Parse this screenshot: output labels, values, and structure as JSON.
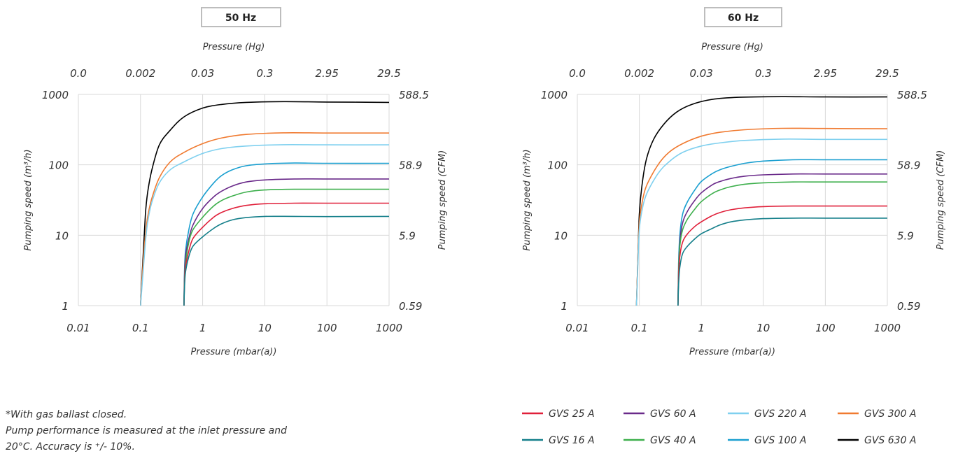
{
  "chart_data": [
    {
      "type": "line",
      "title": "50 Hz",
      "xlabel": "Pressure (mbar(a))",
      "x2label": "Pressure (Hg)",
      "ylabel": "Pumping speed (m³/h)",
      "y2label": "Pumping speed (CFM)",
      "xscale": "log",
      "yscale": "log",
      "xlim": [
        0.01,
        1000
      ],
      "ylim": [
        1,
        1000
      ],
      "x_ticks": [
        "0.01",
        "0.1",
        "1",
        "10",
        "100",
        "1000"
      ],
      "x2_ticks": [
        "0.0",
        "0.002",
        "0.03",
        "0.3",
        "2.95",
        "29.5"
      ],
      "y_ticks": [
        "1",
        "10",
        "100",
        "1000"
      ],
      "y2_ticks": [
        "0.59",
        "5.9",
        "58.9",
        "588.5"
      ],
      "grid": "vertical and horizontal",
      "series": [
        {
          "name": "GVS 630 A",
          "color": "#000000",
          "points": [
            [
              0.1,
              1
            ],
            [
              0.11,
              5
            ],
            [
              0.12,
              20
            ],
            [
              0.13,
              40
            ],
            [
              0.15,
              80
            ],
            [
              0.2,
              190
            ],
            [
              0.3,
              310
            ],
            [
              0.5,
              480
            ],
            [
              1,
              640
            ],
            [
              2,
              720
            ],
            [
              5,
              770
            ],
            [
              20,
              790
            ],
            [
              100,
              780
            ],
            [
              1000,
              770
            ]
          ]
        },
        {
          "name": "GVS 300 A",
          "color": "#f07a30",
          "points": [
            [
              0.1,
              1
            ],
            [
              0.11,
              4
            ],
            [
              0.12,
              10
            ],
            [
              0.13,
              18
            ],
            [
              0.15,
              32
            ],
            [
              0.2,
              65
            ],
            [
              0.3,
              110
            ],
            [
              0.5,
              150
            ],
            [
              1,
              200
            ],
            [
              2,
              240
            ],
            [
              5,
              270
            ],
            [
              20,
              285
            ],
            [
              100,
              283
            ],
            [
              1000,
              283
            ]
          ]
        },
        {
          "name": "GVS 220 A",
          "color": "#7fd0ef",
          "points": [
            [
              0.1,
              1
            ],
            [
              0.11,
              3
            ],
            [
              0.12,
              8
            ],
            [
              0.13,
              15
            ],
            [
              0.15,
              28
            ],
            [
              0.2,
              55
            ],
            [
              0.3,
              85
            ],
            [
              0.5,
              110
            ],
            [
              1,
              145
            ],
            [
              2,
              170
            ],
            [
              5,
              185
            ],
            [
              20,
              193
            ],
            [
              100,
              192
            ],
            [
              1000,
              192
            ]
          ]
        },
        {
          "name": "GVS 100 A",
          "color": "#1a9fd0",
          "points": [
            [
              0.5,
              1
            ],
            [
              0.51,
              3
            ],
            [
              0.53,
              6
            ],
            [
              0.6,
              12
            ],
            [
              0.7,
              20
            ],
            [
              1,
              35
            ],
            [
              1.5,
              55
            ],
            [
              2,
              70
            ],
            [
              3,
              85
            ],
            [
              5,
              97
            ],
            [
              10,
              103
            ],
            [
              30,
              106
            ],
            [
              100,
              105
            ],
            [
              1000,
              105
            ]
          ]
        },
        {
          "name": "GVS 60 A",
          "color": "#6a2a8a",
          "points": [
            [
              0.5,
              1
            ],
            [
              0.51,
              2.5
            ],
            [
              0.53,
              5
            ],
            [
              0.6,
              9
            ],
            [
              0.7,
              14
            ],
            [
              1,
              24
            ],
            [
              1.5,
              35
            ],
            [
              2,
              42
            ],
            [
              3,
              50
            ],
            [
              5,
              57
            ],
            [
              10,
              61
            ],
            [
              30,
              63
            ],
            [
              100,
              63
            ],
            [
              1000,
              63
            ]
          ]
        },
        {
          "name": "GVS 40 A",
          "color": "#3daf4c",
          "points": [
            [
              0.5,
              1
            ],
            [
              0.51,
              2.2
            ],
            [
              0.53,
              4
            ],
            [
              0.6,
              8
            ],
            [
              0.7,
              12
            ],
            [
              1,
              18
            ],
            [
              1.5,
              26
            ],
            [
              2,
              31
            ],
            [
              3,
              36
            ],
            [
              5,
              41
            ],
            [
              10,
              44
            ],
            [
              30,
              45
            ],
            [
              100,
              45
            ],
            [
              1000,
              45
            ]
          ]
        },
        {
          "name": "GVS 25 A",
          "color": "#e0203a",
          "points": [
            [
              0.5,
              1
            ],
            [
              0.51,
              2
            ],
            [
              0.53,
              3.5
            ],
            [
              0.6,
              6
            ],
            [
              0.7,
              9
            ],
            [
              1,
              13
            ],
            [
              1.5,
              18
            ],
            [
              2,
              21
            ],
            [
              3,
              24
            ],
            [
              5,
              26.5
            ],
            [
              10,
              28
            ],
            [
              30,
              28.5
            ],
            [
              100,
              28.5
            ],
            [
              1000,
              28.5
            ]
          ]
        },
        {
          "name": "GVS 16 A",
          "color": "#147f8a",
          "points": [
            [
              0.5,
              1
            ],
            [
              0.51,
              1.8
            ],
            [
              0.53,
              3
            ],
            [
              0.6,
              5
            ],
            [
              0.7,
              7
            ],
            [
              1,
              9.5
            ],
            [
              1.5,
              12.5
            ],
            [
              2,
              14.5
            ],
            [
              3,
              16.5
            ],
            [
              5,
              17.8
            ],
            [
              10,
              18.5
            ],
            [
              30,
              18.5
            ],
            [
              100,
              18.4
            ],
            [
              1000,
              18.5
            ]
          ]
        }
      ]
    },
    {
      "type": "line",
      "title": "60 Hz",
      "xlabel": "Pressure (mbar(a))",
      "x2label": "Pressure (Hg)",
      "ylabel": "Pumping speed (m³/h)",
      "y2label": "Pumping speed (CFM)",
      "xscale": "log",
      "yscale": "log",
      "xlim": [
        0.01,
        1000
      ],
      "ylim": [
        1,
        1000
      ],
      "x_ticks": [
        "0.01",
        "0.1",
        "1",
        "10",
        "100",
        "1000"
      ],
      "x2_ticks": [
        "0.0",
        "0.002",
        "0.03",
        "0.3",
        "2.95",
        "29.5"
      ],
      "y_ticks": [
        "1",
        "10",
        "100",
        "1000"
      ],
      "y2_ticks": [
        "0.59",
        "5.9",
        "58.9",
        "588.5"
      ],
      "grid": "vertical and horizontal",
      "series": [
        {
          "name": "GVS 630 A",
          "color": "#000000",
          "points": [
            [
              0.09,
              1
            ],
            [
              0.095,
              5
            ],
            [
              0.1,
              20
            ],
            [
              0.11,
              50
            ],
            [
              0.13,
              120
            ],
            [
              0.17,
              230
            ],
            [
              0.25,
              380
            ],
            [
              0.4,
              560
            ],
            [
              0.7,
              720
            ],
            [
              1.5,
              850
            ],
            [
              4,
              910
            ],
            [
              20,
              930
            ],
            [
              100,
              920
            ],
            [
              1000,
              920
            ]
          ]
        },
        {
          "name": "GVS 300 A",
          "color": "#f07a30",
          "points": [
            [
              0.09,
              1
            ],
            [
              0.095,
              5
            ],
            [
              0.1,
              15
            ],
            [
              0.11,
              28
            ],
            [
              0.13,
              50
            ],
            [
              0.2,
              100
            ],
            [
              0.3,
              150
            ],
            [
              0.5,
              200
            ],
            [
              1,
              255
            ],
            [
              2,
              290
            ],
            [
              5,
              315
            ],
            [
              20,
              330
            ],
            [
              100,
              328
            ],
            [
              1000,
              325
            ]
          ]
        },
        {
          "name": "GVS 220 A",
          "color": "#7fd0ef",
          "points": [
            [
              0.09,
              1
            ],
            [
              0.095,
              4
            ],
            [
              0.1,
              12
            ],
            [
              0.11,
              22
            ],
            [
              0.13,
              38
            ],
            [
              0.2,
              75
            ],
            [
              0.3,
              110
            ],
            [
              0.5,
              150
            ],
            [
              1,
              185
            ],
            [
              2,
              205
            ],
            [
              5,
              222
            ],
            [
              20,
              232
            ],
            [
              100,
              230
            ],
            [
              1000,
              230
            ]
          ]
        },
        {
          "name": "GVS 100 A",
          "color": "#1a9fd0",
          "points": [
            [
              0.42,
              1
            ],
            [
              0.43,
              4
            ],
            [
              0.45,
              10
            ],
            [
              0.5,
              20
            ],
            [
              0.6,
              30
            ],
            [
              0.8,
              45
            ],
            [
              1,
              58
            ],
            [
              1.5,
              75
            ],
            [
              2,
              85
            ],
            [
              3,
              95
            ],
            [
              5,
              105
            ],
            [
              10,
              113
            ],
            [
              30,
              118
            ],
            [
              100,
              118
            ],
            [
              1000,
              118
            ]
          ]
        },
        {
          "name": "GVS 60 A",
          "color": "#6a2a8a",
          "points": [
            [
              0.42,
              1
            ],
            [
              0.43,
              3
            ],
            [
              0.45,
              8
            ],
            [
              0.5,
              15
            ],
            [
              0.6,
              22
            ],
            [
              0.8,
              32
            ],
            [
              1,
              40
            ],
            [
              1.5,
              52
            ],
            [
              2,
              58
            ],
            [
              3,
              64
            ],
            [
              5,
              69
            ],
            [
              10,
              72
            ],
            [
              30,
              74
            ],
            [
              100,
              74
            ],
            [
              1000,
              74
            ]
          ]
        },
        {
          "name": "GVS 40 A",
          "color": "#3daf4c",
          "points": [
            [
              0.42,
              1
            ],
            [
              0.43,
              3
            ],
            [
              0.45,
              7
            ],
            [
              0.5,
              12
            ],
            [
              0.6,
              17
            ],
            [
              0.8,
              24
            ],
            [
              1,
              30
            ],
            [
              1.5,
              39
            ],
            [
              2,
              44
            ],
            [
              3,
              49
            ],
            [
              5,
              53
            ],
            [
              10,
              55.5
            ],
            [
              30,
              57
            ],
            [
              100,
              57
            ],
            [
              1000,
              57
            ]
          ]
        },
        {
          "name": "GVS 25 A",
          "color": "#e0203a",
          "points": [
            [
              0.42,
              1
            ],
            [
              0.43,
              2.5
            ],
            [
              0.45,
              5
            ],
            [
              0.5,
              8
            ],
            [
              0.6,
              10.5
            ],
            [
              0.8,
              13.5
            ],
            [
              1,
              15.5
            ],
            [
              1.5,
              19
            ],
            [
              2,
              21
            ],
            [
              3,
              23
            ],
            [
              5,
              24.5
            ],
            [
              10,
              25.5
            ],
            [
              30,
              26
            ],
            [
              100,
              26
            ],
            [
              1000,
              26
            ]
          ]
        },
        {
          "name": "GVS 16 A",
          "color": "#147f8a",
          "points": [
            [
              0.42,
              1
            ],
            [
              0.43,
              2
            ],
            [
              0.45,
              3.5
            ],
            [
              0.5,
              5.5
            ],
            [
              0.6,
              7
            ],
            [
              0.8,
              9
            ],
            [
              1,
              10.5
            ],
            [
              1.5,
              12.5
            ],
            [
              2,
              14
            ],
            [
              3,
              15.5
            ],
            [
              5,
              16.5
            ],
            [
              10,
              17.2
            ],
            [
              30,
              17.5
            ],
            [
              100,
              17.5
            ],
            [
              1000,
              17.5
            ]
          ]
        }
      ]
    }
  ],
  "footnote": {
    "line1": "*With gas ballast closed.",
    "line2": "Pump performance is measured at the inlet pressure and",
    "line3": "20°C. Accuracy is ⁺/- 10%."
  },
  "legend": [
    {
      "name": "GVS 25 A",
      "color": "#e0203a"
    },
    {
      "name": "GVS 60 A",
      "color": "#6a2a8a"
    },
    {
      "name": "GVS 220 A",
      "color": "#7fd0ef"
    },
    {
      "name": "GVS 300 A",
      "color": "#f07a30"
    },
    {
      "name": "GVS 16 A",
      "color": "#147f8a"
    },
    {
      "name": "GVS 40 A",
      "color": "#3daf4c"
    },
    {
      "name": "GVS 100 A",
      "color": "#1a9fd0"
    },
    {
      "name": "GVS 630 A",
      "color": "#000000"
    }
  ]
}
